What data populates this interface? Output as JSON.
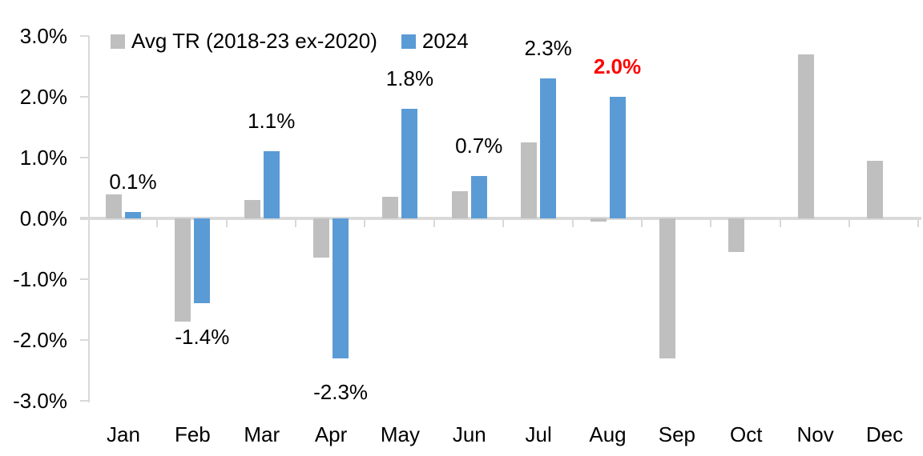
{
  "chart_data": {
    "type": "bar",
    "title": "",
    "xlabel": "",
    "ylabel": "",
    "grid": false,
    "background": "#ffffff",
    "categories": [
      "Jan",
      "Feb",
      "Mar",
      "Apr",
      "May",
      "Jun",
      "Jul",
      "Aug",
      "Sep",
      "Oct",
      "Nov",
      "Dec"
    ],
    "series": [
      {
        "name": "Avg TR (2018-23 ex-2020)",
        "color": "#BFBFBF",
        "values": [
          0.4,
          -1.7,
          0.3,
          -0.65,
          0.35,
          0.45,
          1.25,
          -0.05,
          -2.3,
          -0.55,
          2.7,
          0.95
        ]
      },
      {
        "name": "2024",
        "color": "#5B9BD5",
        "values": [
          0.1,
          -1.4,
          1.1,
          -2.3,
          1.8,
          0.7,
          2.3,
          2.0,
          null,
          null,
          null,
          null
        ]
      }
    ],
    "data_labels": [
      {
        "category": "Jan",
        "text": "0.1%",
        "color": "#000000",
        "bold": false
      },
      {
        "category": "Feb",
        "text": "-1.4%",
        "color": "#000000",
        "bold": false
      },
      {
        "category": "Mar",
        "text": "1.1%",
        "color": "#000000",
        "bold": false
      },
      {
        "category": "Apr",
        "text": "-2.3%",
        "color": "#000000",
        "bold": false
      },
      {
        "category": "May",
        "text": "1.8%",
        "color": "#000000",
        "bold": false
      },
      {
        "category": "Jun",
        "text": "0.7%",
        "color": "#000000",
        "bold": false
      },
      {
        "category": "Jul",
        "text": "2.3%",
        "color": "#000000",
        "bold": false
      },
      {
        "category": "Aug",
        "text": "2.0%",
        "color": "#FF0000",
        "bold": true
      }
    ],
    "y_axis": {
      "min": -3.0,
      "max": 3.0,
      "step": 1.0,
      "tick_labels": [
        "3.0%",
        "2.0%",
        "1.0%",
        "0.0%",
        "-1.0%",
        "-2.0%",
        "-3.0%"
      ],
      "tick_values": [
        3,
        2,
        1,
        0,
        -1,
        -2,
        -3
      ]
    },
    "legend": {
      "position": "top"
    },
    "colors": {
      "axis_line": "#D9D9D9",
      "text": "#000000",
      "highlight": "#FF0000"
    }
  }
}
